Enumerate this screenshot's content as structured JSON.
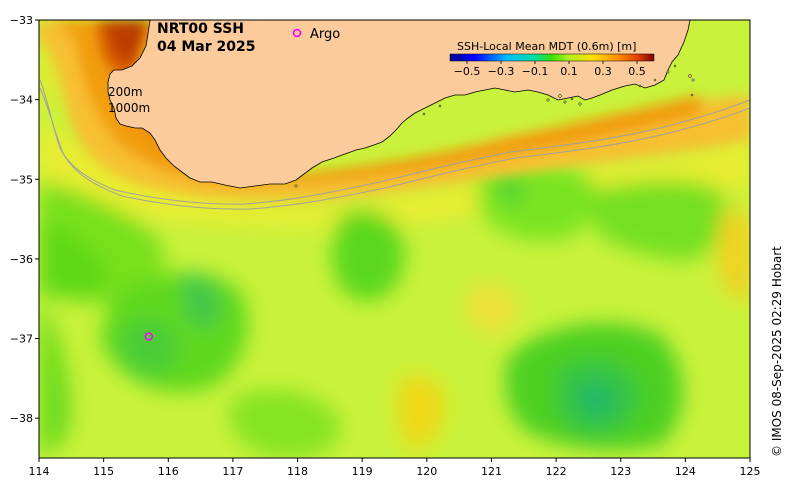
{
  "title": {
    "product": "NRT00 SSH",
    "date": "04 Mar 2025"
  },
  "argo_legend": {
    "symbol": "o",
    "label": "Argo"
  },
  "colorbar": {
    "title": "SSH-Local Mean MDT (0.6m) [m]",
    "min": -0.6,
    "max": 0.6,
    "tick_labels": [
      "−0.5",
      "−0.3",
      "−0.1",
      "0.1",
      "0.3",
      "0.5"
    ],
    "tick_values": [
      -0.5,
      -0.3,
      -0.1,
      0.1,
      0.3,
      0.5
    ]
  },
  "isobaths": {
    "label_200": "200m",
    "label_1000": "1000m"
  },
  "axes": {
    "lon_min": 114,
    "lon_max": 125,
    "lat_min": -38.5,
    "lat_max": -33,
    "x_ticks": [
      {
        "value": 114,
        "label": "114"
      },
      {
        "value": 115,
        "label": "115"
      },
      {
        "value": 116,
        "label": "116"
      },
      {
        "value": 117,
        "label": "117"
      },
      {
        "value": 118,
        "label": "118"
      },
      {
        "value": 119,
        "label": "119"
      },
      {
        "value": 120,
        "label": "120"
      },
      {
        "value": 121,
        "label": "121"
      },
      {
        "value": 122,
        "label": "122"
      },
      {
        "value": 123,
        "label": "123"
      },
      {
        "value": 124,
        "label": "124"
      },
      {
        "value": 125,
        "label": "125"
      }
    ],
    "y_ticks": [
      {
        "value": -33,
        "label": "−33"
      },
      {
        "value": -34,
        "label": "−34"
      },
      {
        "value": -35,
        "label": "−35"
      },
      {
        "value": -36,
        "label": "−36"
      },
      {
        "value": -37,
        "label": "−37"
      },
      {
        "value": -38,
        "label": "−38"
      }
    ]
  },
  "argo_floats": [
    {
      "lon": 115.7,
      "lat": -36.98
    }
  ],
  "credit": "© IMOS 08-Sep-2025 02:29 Hobart",
  "colors": {
    "land": "#fbcb9b",
    "ocean_base": "#c8f23a",
    "argo": "#ff00ff",
    "isobath": "#a0a0a0",
    "coast": "#000000"
  }
}
